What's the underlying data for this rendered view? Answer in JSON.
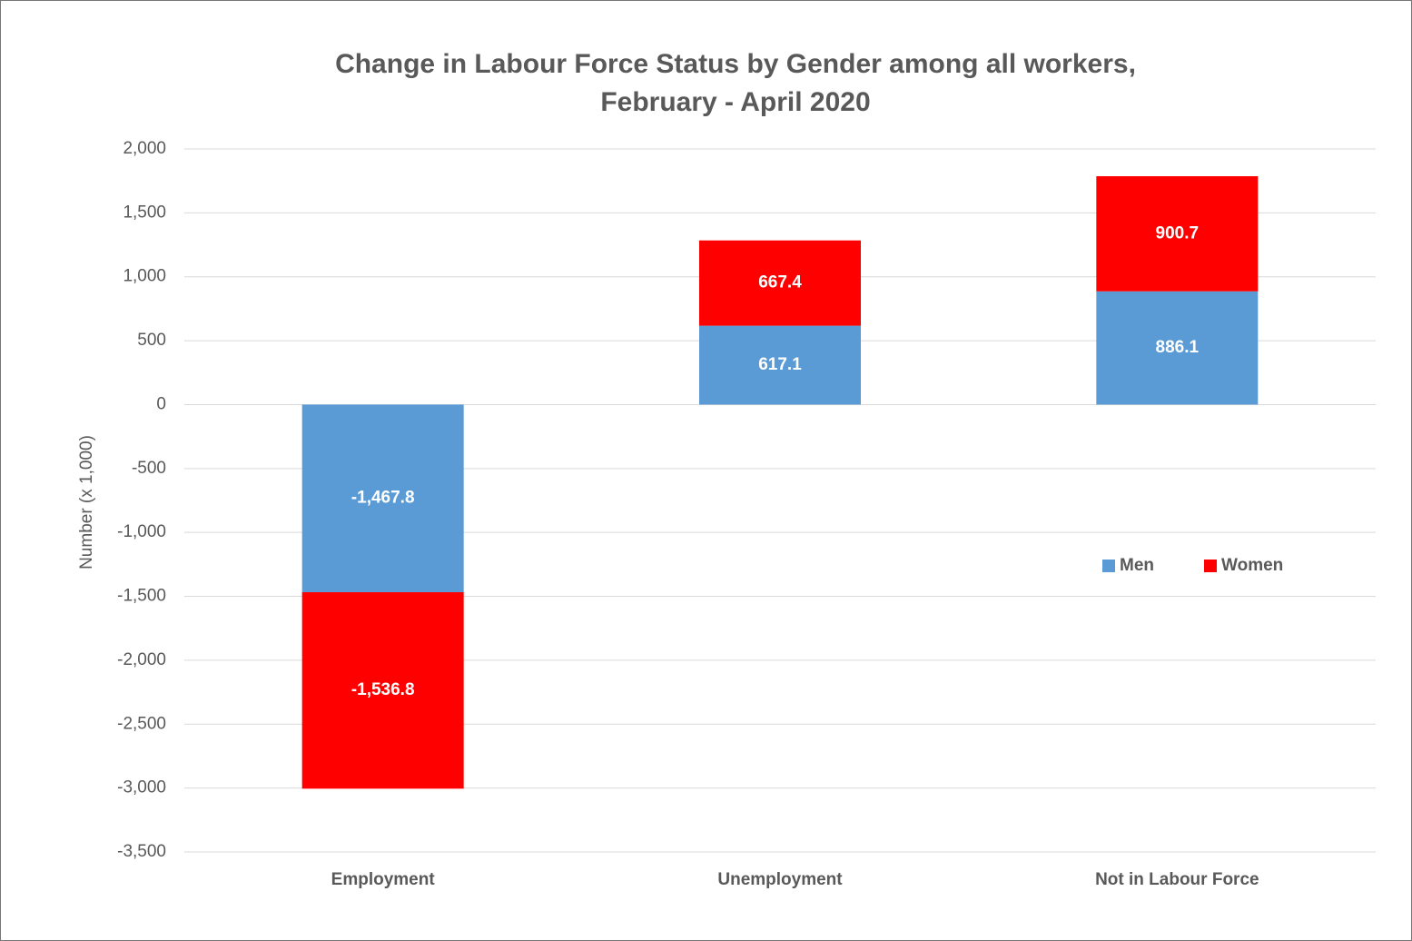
{
  "chart_data": {
    "type": "stacked_bar",
    "title": [
      "Change in Labour Force Status by Gender among all workers,",
      "February - April 2020"
    ],
    "y_label": "Number (x 1,000)",
    "categories": [
      "Employment",
      "Unemployment",
      "Not in Labour Force"
    ],
    "series": [
      {
        "name": "Men",
        "color": "#5b9bd5",
        "values": [
          -1467.8,
          617.1,
          886.1
        ],
        "value_labels": [
          "-1,467.8",
          "617.1",
          "886.1"
        ]
      },
      {
        "name": "Women",
        "color": "#ff0000",
        "values": [
          -1536.8,
          667.4,
          900.7
        ],
        "value_labels": [
          "-1,536.8",
          "667.4",
          "900.7"
        ]
      }
    ],
    "ylim": [
      -3500,
      2000
    ],
    "yticks": [
      {
        "value": 2000,
        "label": "2,000"
      },
      {
        "value": 1500,
        "label": "1,500"
      },
      {
        "value": 1000,
        "label": "1,000"
      },
      500,
      0,
      -500,
      {
        "value": -1000,
        "label": "-1,000"
      },
      {
        "value": -1500,
        "label": "-1,500"
      },
      {
        "value": -2000,
        "label": "-2,000"
      },
      {
        "value": -2500,
        "label": "-2,500"
      },
      {
        "value": -3000,
        "label": "-3,000"
      },
      {
        "value": -3500,
        "label": "-3,500"
      }
    ],
    "grid": true,
    "legend": "right"
  }
}
